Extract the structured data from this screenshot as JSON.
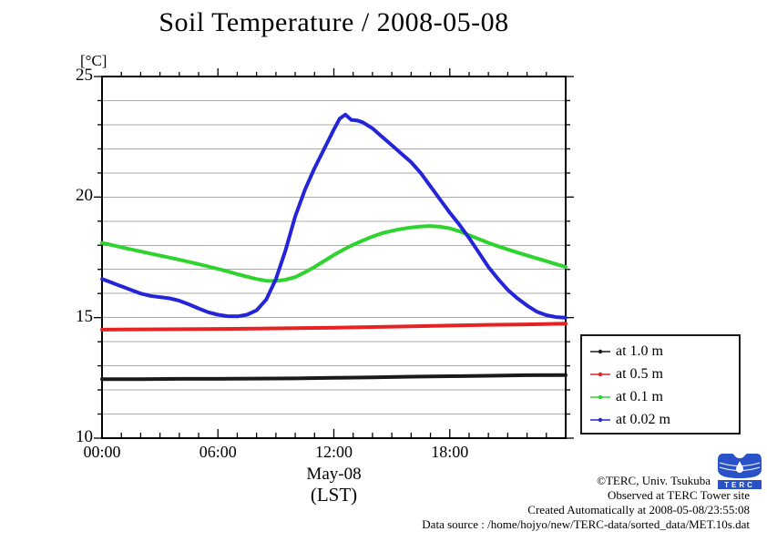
{
  "footer": {
    "copyright": "©TERC, Univ. Tsukuba",
    "observed": "Observed at TERC Tower site",
    "created": "Created Automatically at 2008-05-08/23:55:08",
    "data_source": "Data source : /home/hojyo/new/TERC-data/sorted_data/MET.10s.dat",
    "logo_text": "TERC",
    "logo_color": "#2a52c8"
  },
  "chart_data": {
    "type": "line",
    "title": "Soil Temperature / 2008-05-08",
    "unit_label": "[°C]",
    "date_label": "May-08",
    "tz_label": "(LST)",
    "ylim": [
      10,
      25
    ],
    "xlim_hours": [
      0,
      24
    ],
    "y_major_ticks": [
      25,
      20,
      15,
      10
    ],
    "y_minor_step": 1,
    "x_minor_step_hours": 1,
    "grid": "horizontal gray line at every 1 °C",
    "legend_position": "outside-right-bottom",
    "x_major_ticks": [
      {
        "hour": 0,
        "label": "00:00"
      },
      {
        "hour": 6,
        "label": "06:00"
      },
      {
        "hour": 12,
        "label": "12:00"
      },
      {
        "hour": 18,
        "label": "18:00"
      }
    ],
    "axis_color": "#000000",
    "grid_color": "#ababab",
    "series": [
      {
        "name": "at 1.0 m",
        "color": "#1a1a1a",
        "x": [
          0,
          2,
          4,
          6,
          8,
          10,
          12,
          14,
          16,
          18,
          20,
          22,
          24
        ],
        "y": [
          12.45,
          12.45,
          12.46,
          12.46,
          12.47,
          12.48,
          12.5,
          12.52,
          12.55,
          12.57,
          12.59,
          12.61,
          12.62
        ]
      },
      {
        "name": "at 0.5 m",
        "color": "#e62222",
        "x": [
          0,
          2,
          4,
          6,
          8,
          10,
          12,
          14,
          16,
          18,
          20,
          22,
          24
        ],
        "y": [
          14.5,
          14.51,
          14.52,
          14.53,
          14.54,
          14.56,
          14.58,
          14.61,
          14.64,
          14.67,
          14.7,
          14.72,
          14.75
        ]
      },
      {
        "name": "at 0.1 m",
        "color": "#2ed32e",
        "x": [
          0,
          1,
          2,
          3,
          4,
          5,
          6,
          6.5,
          7,
          7.5,
          8,
          8.5,
          9,
          9.5,
          10,
          10.5,
          11,
          11.5,
          12,
          12.5,
          13,
          13.5,
          14,
          14.5,
          15,
          15.5,
          16,
          16.5,
          17,
          17.5,
          18,
          18.5,
          19,
          19.5,
          20,
          20.5,
          21,
          21.5,
          22,
          22.5,
          23,
          23.5,
          24
        ],
        "y": [
          18.1,
          17.92,
          17.74,
          17.57,
          17.4,
          17.22,
          17.02,
          16.92,
          16.8,
          16.7,
          16.6,
          16.53,
          16.52,
          16.57,
          16.68,
          16.88,
          17.1,
          17.35,
          17.6,
          17.82,
          18.02,
          18.2,
          18.36,
          18.5,
          18.6,
          18.68,
          18.74,
          18.78,
          18.8,
          18.77,
          18.7,
          18.58,
          18.42,
          18.26,
          18.1,
          17.96,
          17.83,
          17.7,
          17.58,
          17.46,
          17.34,
          17.22,
          17.1
        ]
      },
      {
        "name": "at 0.02 m",
        "color": "#2424d9",
        "x": [
          0,
          0.5,
          1,
          1.5,
          2,
          2.5,
          3,
          3.5,
          4,
          4.5,
          5,
          5.5,
          6,
          6.5,
          7,
          7.5,
          8,
          8.5,
          9,
          9.5,
          10,
          10.5,
          11,
          11.5,
          12,
          12.3,
          12.6,
          12.9,
          13.2,
          13.5,
          14,
          14.5,
          15,
          15.5,
          16,
          16.5,
          17,
          17.5,
          18,
          18.5,
          19,
          19.5,
          20,
          20.5,
          21,
          21.5,
          22,
          22.5,
          23,
          23.5,
          24
        ],
        "y": [
          16.6,
          16.45,
          16.3,
          16.15,
          16.0,
          15.9,
          15.85,
          15.8,
          15.7,
          15.55,
          15.38,
          15.22,
          15.12,
          15.06,
          15.05,
          15.12,
          15.3,
          15.75,
          16.6,
          17.8,
          19.2,
          20.3,
          21.2,
          22.0,
          22.8,
          23.25,
          23.42,
          23.2,
          23.18,
          23.1,
          22.85,
          22.5,
          22.15,
          21.8,
          21.45,
          21.0,
          20.45,
          19.9,
          19.35,
          18.85,
          18.3,
          17.7,
          17.1,
          16.6,
          16.15,
          15.8,
          15.5,
          15.25,
          15.1,
          15.02,
          15.0
        ]
      }
    ]
  }
}
